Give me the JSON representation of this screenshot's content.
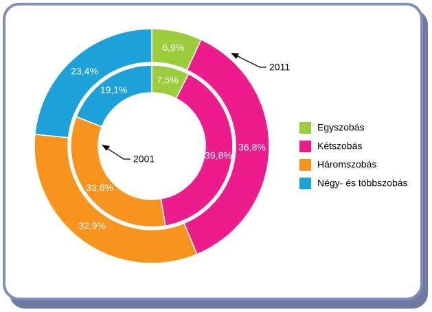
{
  "chart_data": {
    "type": "nested-donut",
    "categories": [
      "Egyszobás",
      "Kétszobás",
      "Háromszobás",
      "Négy- és többszobás"
    ],
    "colors": [
      "#9ccb3b",
      "#ec1c8c",
      "#f7941d",
      "#1ca1d8"
    ],
    "series": [
      {
        "name": "2011",
        "values": [
          6.9,
          36.8,
          32.9,
          23.4
        ],
        "value_labels": [
          "6,9%",
          "36,8%",
          "32,9%",
          "23,4%"
        ]
      },
      {
        "name": "2001",
        "values": [
          7.5,
          39.8,
          33.6,
          19.1
        ],
        "value_labels": [
          "7,5%",
          "39,8%",
          "33,6%",
          "19,1%"
        ]
      }
    ]
  }
}
